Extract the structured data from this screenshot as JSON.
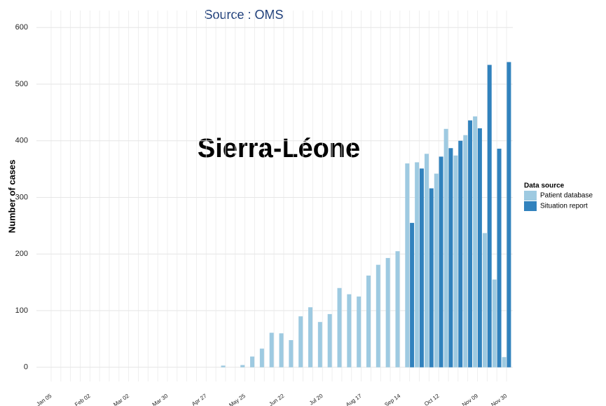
{
  "chart_data": {
    "type": "bar",
    "title": "Source : OMS",
    "annotation": "Sierra-Léone",
    "y_label": "Number of cases",
    "legend_title": "Data source",
    "legend_position": "right",
    "grid": true,
    "categories": [
      "Jan 05",
      null,
      null,
      null,
      "Feb 02",
      null,
      null,
      null,
      "Mar 02",
      null,
      null,
      null,
      "Mar 30",
      null,
      null,
      null,
      "Apr 27",
      null,
      null,
      null,
      "May 25",
      null,
      null,
      null,
      "Jun 22",
      null,
      null,
      null,
      "Jul 20",
      null,
      null,
      null,
      "Aug 17",
      null,
      null,
      null,
      "Sep 14",
      null,
      null,
      null,
      "Oct 12",
      null,
      null,
      null,
      "Nov 09",
      null,
      null,
      "Nov 30"
    ],
    "series": [
      {
        "name": "Patient database",
        "color": "#9ecae1",
        "values": [
          null,
          null,
          null,
          null,
          null,
          null,
          null,
          null,
          null,
          null,
          null,
          null,
          null,
          null,
          null,
          null,
          null,
          null,
          3,
          null,
          4,
          19,
          33,
          61,
          60,
          48,
          90,
          106,
          80,
          94,
          140,
          129,
          125,
          162,
          181,
          193,
          205,
          360,
          362,
          377,
          342,
          421,
          374,
          410,
          443,
          237,
          155,
          18
        ]
      },
      {
        "name": "Situation report",
        "color": "#3182bd",
        "values": [
          null,
          null,
          null,
          null,
          null,
          null,
          null,
          null,
          null,
          null,
          null,
          null,
          null,
          null,
          null,
          null,
          null,
          null,
          null,
          null,
          null,
          null,
          null,
          null,
          null,
          null,
          null,
          null,
          null,
          null,
          null,
          null,
          null,
          null,
          null,
          null,
          null,
          255,
          351,
          316,
          372,
          387,
          400,
          436,
          422,
          534,
          386,
          539
        ]
      }
    ],
    "ylim": [
      -25,
      630
    ],
    "yticks": [
      0,
      100,
      200,
      300,
      400,
      500,
      600
    ]
  }
}
